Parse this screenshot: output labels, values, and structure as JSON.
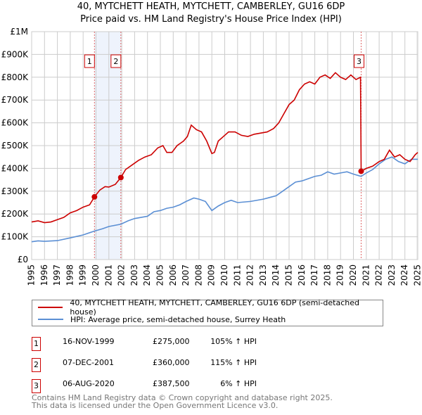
{
  "title": "40, MYTCHETT HEATH, MYTCHETT, CAMBERLEY, GU16 6DP",
  "subtitle": "Price paid vs. HM Land Registry's House Price Index (HPI)",
  "chart_data": {
    "type": "line",
    "ylim": [
      0,
      1000000
    ],
    "xlim": [
      1995,
      2025
    ],
    "yticks": [
      {
        "v": 0,
        "l": "£0"
      },
      {
        "v": 100000,
        "l": "£100K"
      },
      {
        "v": 200000,
        "l": "£200K"
      },
      {
        "v": 300000,
        "l": "£300K"
      },
      {
        "v": 400000,
        "l": "£400K"
      },
      {
        "v": 500000,
        "l": "£500K"
      },
      {
        "v": 600000,
        "l": "£600K"
      },
      {
        "v": 700000,
        "l": "£700K"
      },
      {
        "v": 800000,
        "l": "£800K"
      },
      {
        "v": 900000,
        "l": "£900K"
      },
      {
        "v": 1000000,
        "l": "£1M"
      }
    ],
    "xticks": [
      "1995",
      "1996",
      "1997",
      "1998",
      "1999",
      "2000",
      "2001",
      "2002",
      "2003",
      "2004",
      "2005",
      "2006",
      "2007",
      "2008",
      "2009",
      "2010",
      "2011",
      "2012",
      "2013",
      "2014",
      "2015",
      "2016",
      "2017",
      "2018",
      "2019",
      "2020",
      "2021",
      "2022",
      "2023",
      "2024",
      "2025"
    ],
    "grid": true,
    "series": [
      {
        "name": "40, MYTCHETT HEATH, MYTCHETT, CAMBERLEY, GU16 6DP (semi-detached house)",
        "color": "#cc0000",
        "x": [
          1995,
          1995.5,
          1996,
          1996.5,
          1997,
          1997.5,
          1998,
          1998.5,
          1999,
          1999.5,
          1999.88,
          2000.3,
          2000.7,
          2001,
          2001.5,
          2001.93,
          2002.3,
          2002.8,
          2003.3,
          2003.8,
          2004.3,
          2004.8,
          2005.2,
          2005.5,
          2005.9,
          2006.3,
          2006.8,
          2007.1,
          2007.4,
          2007.8,
          2008.2,
          2008.6,
          2009,
          2009.2,
          2009.5,
          2009.9,
          2010.3,
          2010.8,
          2011.3,
          2011.8,
          2012.3,
          2012.8,
          2013.3,
          2013.8,
          2014.2,
          2014.6,
          2015,
          2015.4,
          2015.8,
          2016.2,
          2016.6,
          2017,
          2017.4,
          2017.8,
          2018.2,
          2018.6,
          2019,
          2019.4,
          2019.8,
          2020.2,
          2020.55,
          2020.6,
          2021,
          2021.5,
          2022,
          2022.4,
          2022.8,
          2023.2,
          2023.6,
          2024,
          2024.4,
          2024.8,
          2025
        ],
        "y": [
          165000,
          170000,
          162000,
          165000,
          175000,
          185000,
          205000,
          215000,
          230000,
          240000,
          275000,
          305000,
          320000,
          318000,
          330000,
          360000,
          395000,
          415000,
          435000,
          450000,
          460000,
          490000,
          500000,
          470000,
          470000,
          500000,
          520000,
          540000,
          590000,
          570000,
          560000,
          520000,
          465000,
          470000,
          520000,
          540000,
          560000,
          560000,
          545000,
          540000,
          550000,
          555000,
          560000,
          575000,
          600000,
          640000,
          680000,
          700000,
          745000,
          770000,
          780000,
          770000,
          800000,
          810000,
          795000,
          820000,
          800000,
          790000,
          810000,
          790000,
          800000,
          387500,
          400000,
          410000,
          430000,
          440000,
          480000,
          450000,
          460000,
          440000,
          430000,
          460000,
          470000
        ]
      },
      {
        "name": "HPI: Average price, semi-detached house, Surrey Heath",
        "color": "#5b8fd4",
        "x": [
          1995,
          1995.5,
          1996,
          1997,
          1998,
          1999,
          1999.88,
          2000.5,
          2001,
          2001.93,
          2002.5,
          2003,
          2004,
          2004.5,
          2005,
          2005.5,
          2006,
          2006.5,
          2007,
          2007.6,
          2008,
          2008.5,
          2009,
          2009.5,
          2010,
          2010.5,
          2011,
          2012,
          2013,
          2014,
          2014.5,
          2015,
          2015.5,
          2016,
          2016.5,
          2017,
          2017.5,
          2018,
          2018.5,
          2019,
          2019.5,
          2020,
          2020.6,
          2021,
          2021.5,
          2022,
          2022.5,
          2023,
          2023.5,
          2024,
          2024.5,
          2025
        ],
        "y": [
          78000,
          82000,
          80000,
          83000,
          95000,
          108000,
          125000,
          135000,
          145000,
          155000,
          170000,
          180000,
          190000,
          210000,
          215000,
          225000,
          230000,
          240000,
          255000,
          270000,
          265000,
          255000,
          215000,
          235000,
          250000,
          260000,
          250000,
          255000,
          265000,
          280000,
          300000,
          320000,
          340000,
          345000,
          355000,
          365000,
          370000,
          385000,
          375000,
          380000,
          385000,
          375000,
          365000,
          380000,
          395000,
          420000,
          440000,
          450000,
          430000,
          420000,
          440000,
          440000
        ]
      }
    ],
    "sales": [
      {
        "n": "1",
        "x": 1999.88,
        "y": 275000
      },
      {
        "n": "2",
        "x": 2001.93,
        "y": 360000
      },
      {
        "n": "3",
        "x": 2020.6,
        "y": 387500
      }
    ],
    "legend_placement": "bottom"
  },
  "legend": [
    "40, MYTCHETT HEATH, MYTCHETT, CAMBERLEY, GU16 6DP (semi-detached house)",
    "HPI: Average price, semi-detached house, Surrey Heath"
  ],
  "transactions": [
    {
      "n": "1",
      "date": "16-NOV-1999",
      "price": "£275,000",
      "hpi": "105% ↑ HPI"
    },
    {
      "n": "2",
      "date": "07-DEC-2001",
      "price": "£360,000",
      "hpi": "115% ↑ HPI"
    },
    {
      "n": "3",
      "date": "06-AUG-2020",
      "price": "£387,500",
      "hpi": "6% ↑ HPI"
    }
  ],
  "footer": [
    "Contains HM Land Registry data © Crown copyright and database right 2025.",
    "This data is licensed under the Open Government Licence v3.0."
  ]
}
